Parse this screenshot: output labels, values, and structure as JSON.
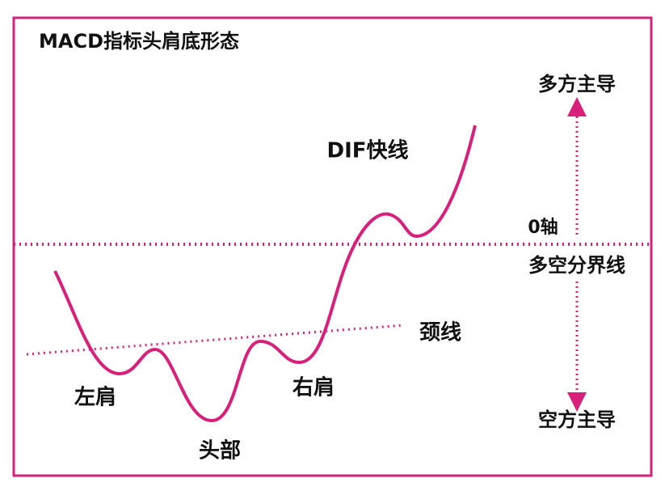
{
  "title": "MACD指标头肩底形态",
  "labels": {
    "bull": "多方主导",
    "dif": "DIF快线",
    "zero_axis": "0轴",
    "divider": "多空分界线",
    "neckline": "颈线",
    "left_shoulder": "左肩",
    "head": "头部",
    "right_shoulder": "右肩",
    "bear": "空方主导"
  }
}
